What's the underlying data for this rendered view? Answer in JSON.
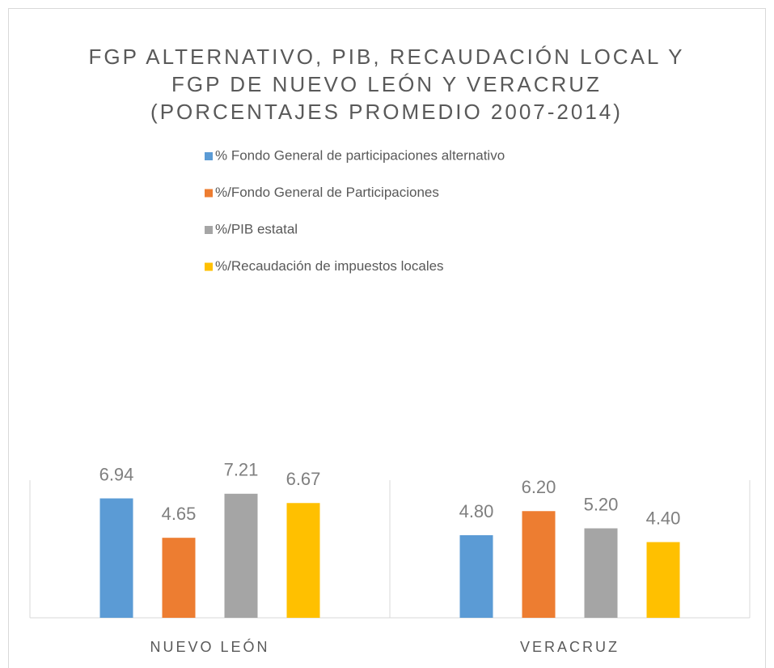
{
  "chart_data": {
    "type": "bar",
    "title": [
      "FGP ALTERNATIVO, PIB, RECAUDACIÓN LOCAL Y",
      "FGP DE NUEVO LEÓN Y VERACRUZ",
      "(PORCENTAJES PROMEDIO 2007-2014)"
    ],
    "categories": [
      "NUEVO LEÓN",
      "VERACRUZ"
    ],
    "series": [
      {
        "name": "% Fondo General de participaciones alternativo",
        "color": "#5b9bd5",
        "values": [
          6.94,
          4.8
        ],
        "value_labels": [
          "6.94",
          "4.80"
        ]
      },
      {
        "name": "%/Fondo General de Participaciones",
        "color": "#ed7d31",
        "values": [
          4.65,
          6.2
        ],
        "value_labels": [
          "4.65",
          "6.20"
        ]
      },
      {
        "name": "%/PIB estatal",
        "color": "#a5a5a5",
        "values": [
          7.21,
          5.2
        ],
        "value_labels": [
          "7.21",
          "5.20"
        ]
      },
      {
        "name": "%/Recaudación de impuestos locales",
        "color": "#ffc000",
        "values": [
          6.67,
          4.4
        ],
        "value_labels": [
          "6.67",
          "4.40"
        ]
      }
    ],
    "ylim": [
      0,
      8
    ],
    "legend": "top"
  }
}
